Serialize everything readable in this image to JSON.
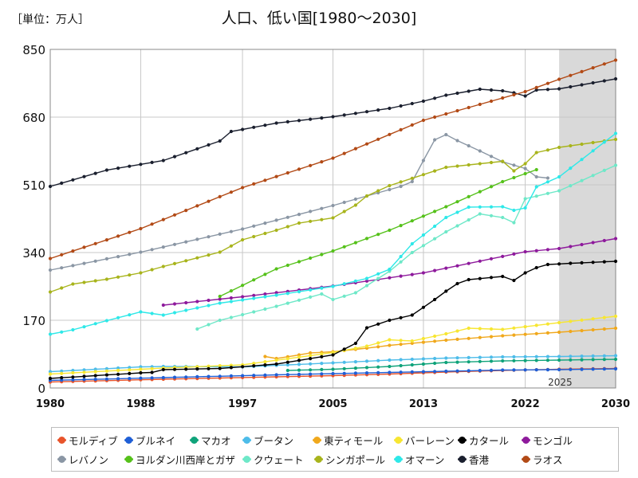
{
  "header": {
    "unit": "［単位：万人］",
    "title": "人口、低い国[1980〜2030]"
  },
  "chart_data": {
    "type": "line",
    "x_ticks": [
      1980,
      1988,
      1997,
      2005,
      2013,
      2022,
      2030
    ],
    "y_ticks": [
      0,
      170,
      340,
      510,
      680,
      850
    ],
    "xlim": [
      1980,
      2030
    ],
    "ylim": [
      0,
      850
    ],
    "forecast_start": 2025,
    "forecast_label": "2025",
    "grid": true,
    "legend_position": "bottom",
    "series": [
      {
        "name": "モルディブ",
        "color": "#e8542b",
        "points": [
          [
            1980,
            15
          ],
          [
            1990,
            22
          ],
          [
            2000,
            28
          ],
          [
            2005,
            31
          ],
          [
            2010,
            35
          ],
          [
            2015,
            40
          ],
          [
            2020,
            44
          ],
          [
            2025,
            47
          ],
          [
            2030,
            49
          ]
        ]
      },
      {
        "name": "ブルネイ",
        "color": "#1f5fd6",
        "points": [
          [
            1980,
            19
          ],
          [
            1990,
            26
          ],
          [
            2000,
            33
          ],
          [
            2005,
            36
          ],
          [
            2010,
            39
          ],
          [
            2015,
            42
          ],
          [
            2020,
            45
          ],
          [
            2025,
            46
          ],
          [
            2030,
            48
          ]
        ]
      },
      {
        "name": "マカオ",
        "color": "#0fa37a",
        "points": [
          [
            2001,
            44
          ],
          [
            2005,
            47
          ],
          [
            2010,
            54
          ],
          [
            2015,
            64
          ],
          [
            2020,
            68
          ],
          [
            2025,
            70
          ],
          [
            2030,
            72
          ]
        ]
      },
      {
        "name": "ブータン",
        "color": "#4dbce9",
        "points": [
          [
            1980,
            41
          ],
          [
            1988,
            53
          ],
          [
            1990,
            54
          ],
          [
            1997,
            53
          ],
          [
            2005,
            63
          ],
          [
            2010,
            70
          ],
          [
            2015,
            75
          ],
          [
            2020,
            78
          ],
          [
            2025,
            79
          ],
          [
            2030,
            81
          ]
        ]
      },
      {
        "name": "東ティモール",
        "color": "#f0a81c",
        "points": [
          [
            1999,
            79
          ],
          [
            2000,
            74
          ],
          [
            2002,
            83
          ],
          [
            2003,
            88
          ],
          [
            2005,
            91
          ],
          [
            2008,
            100
          ],
          [
            2010,
            107
          ],
          [
            2015,
            120
          ],
          [
            2020,
            131
          ],
          [
            2025,
            140
          ],
          [
            2030,
            150
          ]
        ]
      },
      {
        "name": "バーレーン",
        "color": "#f7e632",
        "points": [
          [
            1980,
            35
          ],
          [
            1988,
            47
          ],
          [
            1990,
            50
          ],
          [
            1997,
            58
          ],
          [
            2005,
            89
          ],
          [
            2008,
            105
          ],
          [
            2010,
            121
          ],
          [
            2012,
            118
          ],
          [
            2015,
            136
          ],
          [
            2017,
            150
          ],
          [
            2020,
            147
          ],
          [
            2025,
            164
          ],
          [
            2030,
            180
          ]
        ]
      },
      {
        "name": "カタール",
        "color": "#000000",
        "points": [
          [
            1980,
            24
          ],
          [
            1988,
            38
          ],
          [
            1989,
            39
          ],
          [
            1990,
            46
          ],
          [
            1995,
            49
          ],
          [
            2000,
            60
          ],
          [
            2005,
            83
          ],
          [
            2007,
            112
          ],
          [
            2008,
            151
          ],
          [
            2010,
            170
          ],
          [
            2012,
            183
          ],
          [
            2014,
            222
          ],
          [
            2015,
            243
          ],
          [
            2016,
            262
          ],
          [
            2017,
            272
          ],
          [
            2020,
            280
          ],
          [
            2021,
            270
          ],
          [
            2022,
            289
          ],
          [
            2023,
            302
          ],
          [
            2024,
            310
          ],
          [
            2026,
            313
          ],
          [
            2030,
            318
          ]
        ]
      },
      {
        "name": "モンゴル",
        "color": "#8e1a9c",
        "points": [
          [
            1990,
            208
          ],
          [
            1997,
            229
          ],
          [
            2005,
            256
          ],
          [
            2013,
            289
          ],
          [
            2022,
            342
          ],
          [
            2025,
            350
          ],
          [
            2030,
            375
          ]
        ]
      },
      {
        "name": "レバノン",
        "color": "#8a96a4",
        "points": [
          [
            1980,
            296
          ],
          [
            1988,
            341
          ],
          [
            1997,
            399
          ],
          [
            2005,
            458
          ],
          [
            2010,
            498
          ],
          [
            2011,
            506
          ],
          [
            2012,
            518
          ],
          [
            2013,
            571
          ],
          [
            2014,
            623
          ],
          [
            2015,
            636
          ],
          [
            2016,
            621
          ],
          [
            2018,
            595
          ],
          [
            2020,
            568
          ],
          [
            2022,
            551
          ],
          [
            2023,
            530
          ],
          [
            2024,
            527
          ]
        ]
      },
      {
        "name": "ヨルダン川西岸とガザ",
        "color": "#55c11a",
        "points": [
          [
            1995,
            230
          ],
          [
            2000,
            299
          ],
          [
            2005,
            344
          ],
          [
            2010,
            396
          ],
          [
            2015,
            455
          ],
          [
            2020,
            518
          ],
          [
            2023,
            548
          ]
        ]
      },
      {
        "name": "クウェート",
        "color": "#6ee8c8",
        "points": [
          [
            1993,
            148
          ],
          [
            1995,
            170
          ],
          [
            2000,
            205
          ],
          [
            2004,
            236
          ],
          [
            2005,
            222
          ],
          [
            2007,
            239
          ],
          [
            2010,
            293
          ],
          [
            2012,
            340
          ],
          [
            2015,
            392
          ],
          [
            2018,
            437
          ],
          [
            2020,
            428
          ],
          [
            2021,
            415
          ],
          [
            2022,
            475
          ],
          [
            2025,
            495
          ],
          [
            2030,
            559
          ]
        ]
      },
      {
        "name": "シンガポール",
        "color": "#a8b41c",
        "points": [
          [
            1980,
            241
          ],
          [
            1982,
            261
          ],
          [
            1985,
            273
          ],
          [
            1988,
            289
          ],
          [
            1990,
            305
          ],
          [
            1995,
            341
          ],
          [
            1997,
            372
          ],
          [
            2000,
            396
          ],
          [
            2002,
            414
          ],
          [
            2005,
            427
          ],
          [
            2007,
            459
          ],
          [
            2008,
            482
          ],
          [
            2010,
            508
          ],
          [
            2015,
            554
          ],
          [
            2020,
            569
          ],
          [
            2021,
            545
          ],
          [
            2022,
            563
          ],
          [
            2023,
            591
          ],
          [
            2025,
            604
          ],
          [
            2030,
            624
          ]
        ]
      },
      {
        "name": "オマーン",
        "color": "#2ee8e8",
        "points": [
          [
            1980,
            135
          ],
          [
            1982,
            146
          ],
          [
            1985,
            169
          ],
          [
            1988,
            191
          ],
          [
            1990,
            183
          ],
          [
            1995,
            213
          ],
          [
            2000,
            233
          ],
          [
            2005,
            255
          ],
          [
            2008,
            275
          ],
          [
            2010,
            298
          ],
          [
            2012,
            362
          ],
          [
            2015,
            428
          ],
          [
            2017,
            454
          ],
          [
            2020,
            455
          ],
          [
            2021,
            446
          ],
          [
            2022,
            452
          ],
          [
            2023,
            505
          ],
          [
            2025,
            530
          ],
          [
            2030,
            639
          ]
        ]
      },
      {
        "name": "香港",
        "color": "#1a1f2e",
        "points": [
          [
            1980,
            506
          ],
          [
            1985,
            547
          ],
          [
            1990,
            571
          ],
          [
            1995,
            620
          ],
          [
            1996,
            644
          ],
          [
            1997,
            649
          ],
          [
            2000,
            665
          ],
          [
            2005,
            681
          ],
          [
            2010,
            702
          ],
          [
            2013,
            720
          ],
          [
            2015,
            735
          ],
          [
            2018,
            750
          ],
          [
            2020,
            746
          ],
          [
            2021,
            741
          ],
          [
            2022,
            733
          ],
          [
            2023,
            748
          ],
          [
            2025,
            751
          ],
          [
            2028,
            766
          ],
          [
            2030,
            776
          ]
        ]
      },
      {
        "name": "ラオス",
        "color": "#b24a16",
        "points": [
          [
            1980,
            325
          ],
          [
            1988,
            400
          ],
          [
            1997,
            503
          ],
          [
            2005,
            577
          ],
          [
            2013,
            672
          ],
          [
            2022,
            744
          ],
          [
            2025,
            775
          ],
          [
            2030,
            823
          ]
        ]
      }
    ]
  }
}
